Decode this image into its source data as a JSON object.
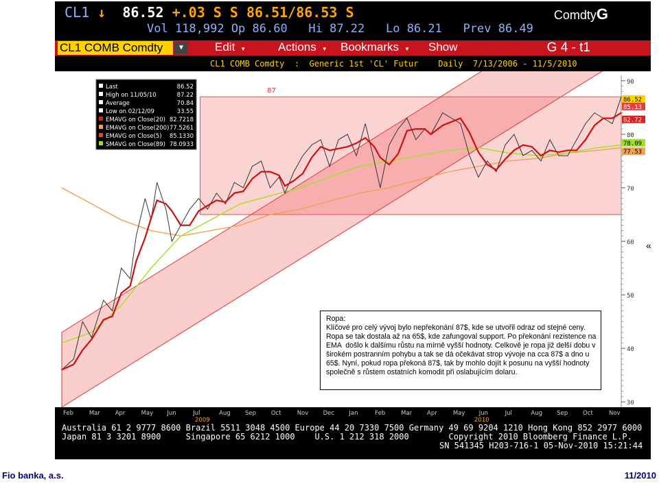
{
  "header": {
    "ticker": "CL1",
    "arrow": "↓",
    "last": "86.52",
    "change": "+.03",
    "bidask": "S S 86.51/86.53 S",
    "market": "Comdty",
    "market_g": "G",
    "line2": "Vol 118,992 Op 86.60   Hi 87.22   Lo 86.21   Prev 86.49"
  },
  "toolbar": {
    "security": "CL1 COMB Comdty",
    "menus": [
      "Edit",
      "Actions",
      "Bookmarks",
      "Show"
    ],
    "page": "G 4 - t1"
  },
  "subtitle": "CL1 COMB Comdty  :  Generic 1st 'CL' Futur    Daily  7/13/2006 - 11/5/2010",
  "chart_data": {
    "type": "line",
    "title": "CL1 COMB Comdty : Generic 1st 'CL' Futur",
    "period": "Daily 7/13/2006 - 11/5/2010",
    "ylim": [
      29,
      91
    ],
    "y_ticks": [
      30,
      40,
      50,
      60,
      70,
      80,
      90
    ],
    "x_ticks": [
      "Feb",
      "Mar",
      "Apr",
      "May",
      "Jun",
      "Jul",
      "Aug",
      "Sep",
      "Oct",
      "Nov",
      "Dec",
      "Jan",
      "Feb",
      "Mar",
      "Apr",
      "May",
      "Jun",
      "Jul",
      "Aug",
      "Sep",
      "Oct",
      "Nov"
    ],
    "year_labels": [
      "2009",
      "2010"
    ],
    "price_label": "87",
    "legend": [
      {
        "label": "Last",
        "value": "86.52",
        "color": "#ffffff"
      },
      {
        "label": "High on 11/05/10",
        "value": "87.22",
        "color": "#ffffff"
      },
      {
        "label": "Average",
        "value": "70.84",
        "color": "#ffffff"
      },
      {
        "label": "Low on 02/12/09",
        "value": "33.55",
        "color": "#ffffff"
      },
      {
        "label": "EMAVG on Close(20)",
        "value": "82.7218",
        "color": "#e02020"
      },
      {
        "label": "EMAVG on Close(200)",
        "value": "77.5261",
        "color": "#f0a050"
      },
      {
        "label": "EMAVG on Close(5)",
        "value": "85.1330",
        "color": "#e04040"
      },
      {
        "label": "SMAVG on Close(89)",
        "value": "78.0933",
        "color": "#a0e020"
      }
    ],
    "axis_tags": [
      {
        "value": "86.52",
        "color": "#ffd200",
        "text_color": "#000000"
      },
      {
        "value": "85.13",
        "color": "#e04040",
        "text_color": "#ffffff"
      },
      {
        "value": "82.72",
        "color": "#e02020",
        "text_color": "#ffffff"
      },
      {
        "value": "78.09",
        "color": "#a0e020",
        "text_color": "#000000"
      },
      {
        "value": "77.53",
        "color": "#f0a050",
        "text_color": "#000000"
      }
    ],
    "series": [
      {
        "name": "Last",
        "color": "#e8e8e8",
        "values": [
          [
            0,
            36
          ],
          [
            8,
            38
          ],
          [
            14,
            45
          ],
          [
            20,
            42
          ],
          [
            28,
            49
          ],
          [
            34,
            47
          ],
          [
            40,
            55
          ],
          [
            46,
            53
          ],
          [
            50,
            61
          ],
          [
            56,
            68
          ],
          [
            60,
            64
          ],
          [
            64,
            71
          ],
          [
            70,
            66
          ],
          [
            74,
            60
          ],
          [
            80,
            63
          ],
          [
            86,
            66
          ],
          [
            92,
            68
          ],
          [
            98,
            66
          ],
          [
            104,
            69
          ],
          [
            110,
            67
          ],
          [
            116,
            71
          ],
          [
            122,
            70
          ],
          [
            128,
            74
          ],
          [
            134,
            75
          ],
          [
            140,
            70
          ],
          [
            146,
            72
          ],
          [
            150,
            69
          ],
          [
            156,
            73
          ],
          [
            162,
            76
          ],
          [
            168,
            78
          ],
          [
            174,
            79
          ],
          [
            180,
            74
          ],
          [
            186,
            79
          ],
          [
            192,
            80
          ],
          [
            198,
            76
          ],
          [
            204,
            82
          ],
          [
            210,
            75
          ],
          [
            214,
            70
          ],
          [
            220,
            78
          ],
          [
            226,
            81
          ],
          [
            232,
            83
          ],
          [
            238,
            79
          ],
          [
            244,
            81
          ],
          [
            248,
            80
          ],
          [
            256,
            84
          ],
          [
            262,
            83
          ],
          [
            268,
            82
          ],
          [
            274,
            76
          ],
          [
            280,
            72
          ],
          [
            286,
            75
          ],
          [
            292,
            73
          ],
          [
            298,
            78
          ],
          [
            304,
            80
          ],
          [
            310,
            76
          ],
          [
            316,
            77
          ],
          [
            322,
            75
          ],
          [
            328,
            79
          ],
          [
            334,
            76
          ],
          [
            340,
            76
          ],
          [
            346,
            79
          ],
          [
            352,
            82
          ],
          [
            358,
            84
          ],
          [
            364,
            83
          ],
          [
            370,
            82
          ],
          [
            376,
            87
          ]
        ]
      },
      {
        "name": "EMAVG on Close(200)",
        "color": "#f0a050",
        "values": [
          [
            0,
            70
          ],
          [
            20,
            67
          ],
          [
            40,
            64
          ],
          [
            60,
            62
          ],
          [
            80,
            61
          ],
          [
            100,
            62
          ],
          [
            120,
            63
          ],
          [
            140,
            65
          ],
          [
            160,
            66
          ],
          [
            180,
            67.5
          ],
          [
            200,
            69
          ],
          [
            220,
            70
          ],
          [
            240,
            71.5
          ],
          [
            260,
            73
          ],
          [
            280,
            74
          ],
          [
            300,
            75
          ],
          [
            320,
            75.5
          ],
          [
            340,
            76.5
          ],
          [
            360,
            77
          ],
          [
            376,
            77.5
          ]
        ]
      },
      {
        "name": "SMAVG on Close(89)",
        "color": "#a0e020",
        "values": [
          [
            0,
            41
          ],
          [
            20,
            43
          ],
          [
            40,
            48
          ],
          [
            60,
            55
          ],
          [
            80,
            61
          ],
          [
            100,
            64
          ],
          [
            120,
            67
          ],
          [
            140,
            68.5
          ],
          [
            160,
            70
          ],
          [
            180,
            72
          ],
          [
            200,
            74
          ],
          [
            220,
            75
          ],
          [
            240,
            76
          ],
          [
            260,
            77
          ],
          [
            280,
            77.5
          ],
          [
            300,
            76.5
          ],
          [
            320,
            76
          ],
          [
            340,
            76.5
          ],
          [
            360,
            77.5
          ],
          [
            376,
            78
          ]
        ]
      }
    ],
    "annotation": "Ropa:\nKlíčové pro celý vývoj bylo nepřekonání 87$, kde se utvořil odraz od stejné ceny. Ropa se tak dostala až na 65$, kde zafungoval support. Po překonání rezistence na EMA  došlo k dalšímu růstu na mírně vyšší hodnoty. Celkově je ropa již delší dobu v širokém postranním pohybu a tak se dá očekávat strop vývoje na cca 87$ a dno u 65$. Nyní, pokud ropa překoná 87$, tak by mohlo dojít k posunu na vyšší hodnoty společně s růstem ostatních komodit při oslabujícím dolaru."
  },
  "footer": {
    "line1": "Australia 61 2 9777 8600 Brazil 5511 3048 4500 Europe 44 20 7330 7500 Germany 49 69 9204 1210 Hong Kong 852 2977 6000",
    "line2": "Japan 81 3 3201 8900     Singapore 65 6212 1000    U.S. 1 212 318 2000        Copyright 2010 Bloomberg Finance L.P.",
    "line3": "SN 541345 H203-716-1 05-Nov-2010 15:21:44"
  },
  "page_footer": {
    "left": "Fio banka, a.s.",
    "right": "11/2010",
    "collapse_glyph": "«"
  }
}
